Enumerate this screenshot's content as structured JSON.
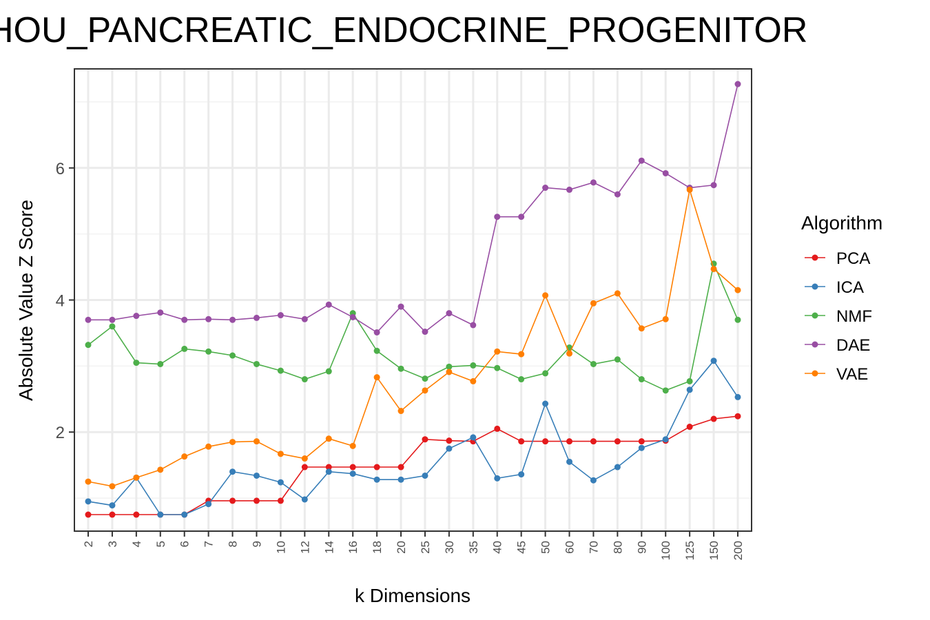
{
  "chart_data": {
    "type": "line",
    "title": "HOU_PANCREATIC_ENDOCRINE_PROGENITOR",
    "xlabel": "k Dimensions",
    "ylabel": "Absolute Value Z Score",
    "categories": [
      "2",
      "3",
      "4",
      "5",
      "6",
      "7",
      "8",
      "9",
      "10",
      "12",
      "14",
      "16",
      "18",
      "20",
      "25",
      "30",
      "35",
      "40",
      "45",
      "50",
      "60",
      "70",
      "80",
      "90",
      "100",
      "125",
      "150",
      "200"
    ],
    "yticks": [
      2,
      4,
      6
    ],
    "ylim": [
      0.5,
      7.5
    ],
    "grid": true,
    "legend": {
      "title": "Algorithm",
      "placement": "right"
    },
    "series": [
      {
        "name": "PCA",
        "color": "#e41a1c",
        "values": [
          0.75,
          0.75,
          0.75,
          0.75,
          0.75,
          0.96,
          0.96,
          0.96,
          0.96,
          1.47,
          1.47,
          1.47,
          1.47,
          1.47,
          1.89,
          1.87,
          1.86,
          2.05,
          1.86,
          1.86,
          1.86,
          1.86,
          1.86,
          1.86,
          1.87,
          2.08,
          2.2,
          2.24
        ]
      },
      {
        "name": "ICA",
        "color": "#377eb8",
        "values": [
          0.95,
          0.89,
          1.31,
          0.75,
          0.75,
          0.91,
          1.4,
          1.34,
          1.24,
          0.98,
          1.4,
          1.37,
          1.28,
          1.28,
          1.34,
          1.75,
          1.92,
          1.3,
          1.36,
          2.43,
          1.55,
          1.27,
          1.47,
          1.76,
          1.89,
          2.64,
          3.08,
          2.53
        ]
      },
      {
        "name": "NMF",
        "color": "#4daf4a",
        "values": [
          3.32,
          3.6,
          3.05,
          3.03,
          3.26,
          3.22,
          3.16,
          3.03,
          2.93,
          2.8,
          2.92,
          3.8,
          3.23,
          2.96,
          2.81,
          2.99,
          3.01,
          2.97,
          2.8,
          2.89,
          3.28,
          3.03,
          3.1,
          2.8,
          2.63,
          2.77,
          4.55,
          3.7
        ]
      },
      {
        "name": "DAE",
        "color": "#984ea3",
        "values": [
          3.7,
          3.7,
          3.76,
          3.81,
          3.7,
          3.71,
          3.7,
          3.73,
          3.77,
          3.71,
          3.93,
          3.74,
          3.51,
          3.9,
          3.52,
          3.8,
          3.62,
          5.26,
          5.26,
          5.7,
          5.67,
          5.78,
          5.6,
          6.11,
          5.92,
          5.7,
          5.74,
          7.27
        ]
      },
      {
        "name": "VAE",
        "color": "#ff7f00",
        "values": [
          1.25,
          1.18,
          1.31,
          1.43,
          1.63,
          1.78,
          1.85,
          1.86,
          1.67,
          1.6,
          1.9,
          1.79,
          2.83,
          2.32,
          2.63,
          2.91,
          2.77,
          3.22,
          3.18,
          4.07,
          3.19,
          3.95,
          4.1,
          3.57,
          3.71,
          5.67,
          4.47,
          4.15
        ]
      }
    ]
  }
}
